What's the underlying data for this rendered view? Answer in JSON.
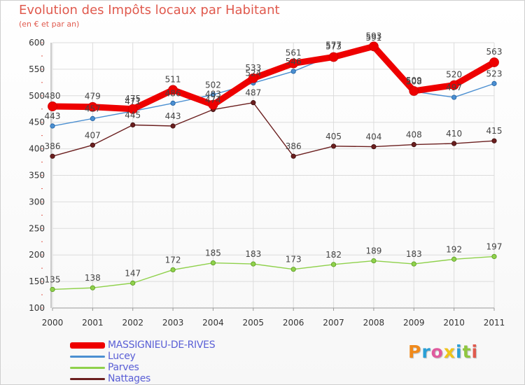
{
  "title": "Evolution des Impôts locaux par Habitant",
  "subtitle": "(en € et par an)",
  "logo_text": "Proxiti",
  "chart_data": {
    "type": "line",
    "title": "Evolution des Impôts locaux par Habitant",
    "subtitle": "(en € et par an)",
    "xlabel": "",
    "ylabel": "",
    "ylim": [
      100,
      600
    ],
    "y_ticks": [
      100,
      150,
      200,
      250,
      300,
      350,
      400,
      450,
      500,
      550,
      600
    ],
    "grid": true,
    "legend_position": "bottom-left",
    "categories": [
      "2000",
      "2001",
      "2002",
      "2003",
      "2004",
      "2005",
      "2006",
      "2007",
      "2008",
      "2009",
      "2010",
      "2011"
    ],
    "series": [
      {
        "name": "MASSIGNIEU-DE-RIVES",
        "color": "#ee0000",
        "values": [
          480,
          479,
          475,
          511,
          483,
          533,
          561,
          573,
          593,
          509,
          520,
          563
        ]
      },
      {
        "name": "Lucey",
        "color": "#4b8fd1",
        "values": [
          443,
          457,
          471,
          486,
          502,
          524,
          546,
          577,
          591,
          508,
          497,
          523
        ]
      },
      {
        "name": "Parves",
        "color": "#8fd14b",
        "values": [
          135,
          138,
          147,
          172,
          185,
          183,
          173,
          182,
          189,
          183,
          192,
          197
        ]
      },
      {
        "name": "Nattages",
        "color": "#6b1f1f",
        "values": [
          386,
          407,
          445,
          443,
          474,
          487,
          386,
          405,
          404,
          408,
          410,
          415
        ]
      }
    ]
  }
}
